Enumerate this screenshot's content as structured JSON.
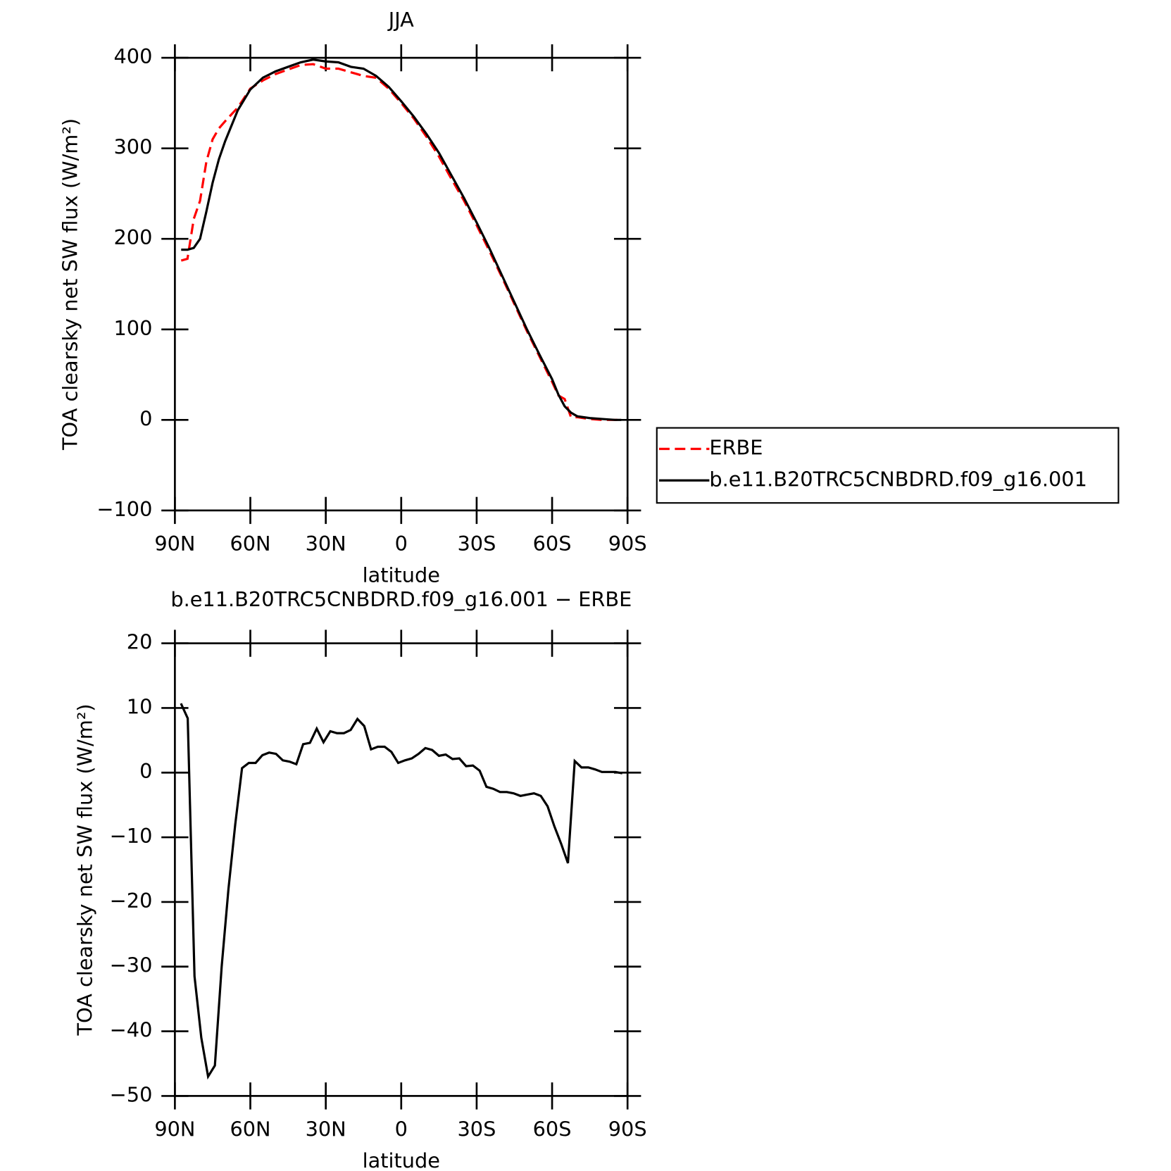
{
  "chart_data": [
    {
      "type": "line",
      "title": "JJA",
      "xlabel": "latitude",
      "ylabel": "TOA clearsky net SW flux (W/m²)",
      "x": [
        87.5,
        85,
        82.5,
        80,
        77.5,
        75,
        72.5,
        70,
        65,
        60,
        55,
        50,
        45,
        40,
        35,
        30,
        25,
        20,
        15,
        10,
        5,
        0,
        -5,
        -10,
        -15,
        -20,
        -25,
        -30,
        -35,
        -40,
        -45,
        -50,
        -55,
        -60,
        -62.5,
        -65,
        -67.5,
        -70,
        -75,
        -80,
        -85,
        -87.5
      ],
      "series": [
        {
          "name": "ERBE",
          "color": "#ff0000",
          "dashed": true,
          "values": [
            176,
            178,
            222,
            242,
            285,
            310,
            322,
            330,
            345,
            366,
            375,
            382,
            387,
            392,
            393,
            388,
            388,
            384,
            380,
            378,
            366,
            350,
            333,
            313,
            291,
            266,
            242,
            215,
            187,
            158,
            128,
            98,
            70,
            42,
            27,
            23,
            3,
            3,
            1,
            0,
            0,
            0
          ]
        },
        {
          "name": "b.e11.B20TRC5CNBDRD.f09_g16.001",
          "color": "#000000",
          "dashed": false,
          "values": [
            188,
            188,
            190,
            200,
            230,
            262,
            288,
            308,
            342,
            365,
            378,
            385,
            390,
            395,
            398,
            396,
            395,
            390,
            388,
            380,
            368,
            352,
            335,
            316,
            295,
            270,
            245,
            218,
            190,
            160,
            130,
            100,
            72,
            45,
            28,
            15,
            8,
            4,
            2,
            1,
            0,
            0
          ]
        }
      ],
      "xlim": [
        90,
        -90
      ],
      "xticks": [
        {
          "value": 90,
          "label": "90N"
        },
        {
          "value": 60,
          "label": "60N"
        },
        {
          "value": 30,
          "label": "30N"
        },
        0,
        {
          "value": -30,
          "label": "30S"
        },
        {
          "value": -60,
          "label": "60S"
        },
        {
          "value": -90,
          "label": "90S"
        }
      ],
      "ylim": [
        -100,
        400
      ],
      "yticks": [
        {
          "value": -100,
          "label": "−100"
        },
        0,
        100,
        200,
        300,
        400
      ],
      "legend": "right"
    },
    {
      "type": "line",
      "title": "b.e11.B20TRC5CNBDRD.f09_g16.001 − ERBE",
      "xlabel": "latitude",
      "ylabel": "TOA clearsky net SW flux (W/m²)",
      "x": [
        87.6,
        84.9,
        82.2,
        79.5,
        76.8,
        74.1,
        71.4,
        68.7,
        66,
        63.3,
        60.6,
        57.9,
        55.2,
        52.5,
        49.8,
        47.1,
        44.4,
        41.7,
        39,
        36.3,
        33.6,
        30.9,
        28.2,
        25.5,
        22.8,
        20.1,
        17.4,
        14.7,
        12,
        9.3,
        6.6,
        3.9,
        1.2,
        -1.5,
        -4.2,
        -6.9,
        -9.6,
        -12.3,
        -15,
        -17.7,
        -20.4,
        -23.1,
        -25.8,
        -28.5,
        -31.2,
        -33.9,
        -36.6,
        -39.3,
        -42,
        -44.7,
        -47.4,
        -50.1,
        -52.8,
        -55.5,
        -58.2,
        -60.9,
        -63.6,
        -66.3,
        -69,
        -71.7,
        -74.4,
        -77.1,
        -79.8,
        -82.5,
        -85.2,
        -87.9
      ],
      "series": [
        {
          "color": "#000000",
          "dashed": false,
          "values": [
            10.7,
            8.4,
            -31.5,
            -41,
            -47,
            -45.3,
            -30,
            -18,
            -8,
            0.7,
            1.5,
            1.5,
            2.7,
            3.1,
            2.9,
            1.9,
            1.7,
            1.3,
            4.4,
            4.6,
            6.8,
            4.7,
            6.4,
            6.1,
            6.1,
            6.6,
            8.3,
            7.2,
            3.6,
            4.0,
            4.0,
            3.2,
            1.5,
            1.9,
            2.2,
            2.9,
            3.8,
            3.5,
            2.6,
            2.8,
            2.1,
            2.2,
            1.0,
            1.1,
            0.3,
            -2.2,
            -2.5,
            -3.0,
            -3.0,
            -3.2,
            -3.6,
            -3.4,
            -3.2,
            -3.6,
            -5.2,
            -8.3,
            -11,
            -14,
            1.8,
            0.8,
            0.8,
            0.5,
            0.1,
            0.1,
            0.1,
            -0.1
          ]
        }
      ],
      "xlim": [
        90,
        -90
      ],
      "xticks": [
        {
          "value": 90,
          "label": "90N"
        },
        {
          "value": 60,
          "label": "60N"
        },
        {
          "value": 30,
          "label": "30N"
        },
        0,
        {
          "value": -30,
          "label": "30S"
        },
        {
          "value": -60,
          "label": "60S"
        },
        {
          "value": -90,
          "label": "90S"
        }
      ],
      "ylim": [
        -50,
        20
      ],
      "yticks": [
        {
          "value": -50,
          "label": "−50"
        },
        {
          "value": -40,
          "label": "−40"
        },
        {
          "value": -30,
          "label": "−30"
        },
        {
          "value": -20,
          "label": "−20"
        },
        {
          "value": -10,
          "label": "−10"
        },
        0,
        10,
        20
      ]
    }
  ]
}
